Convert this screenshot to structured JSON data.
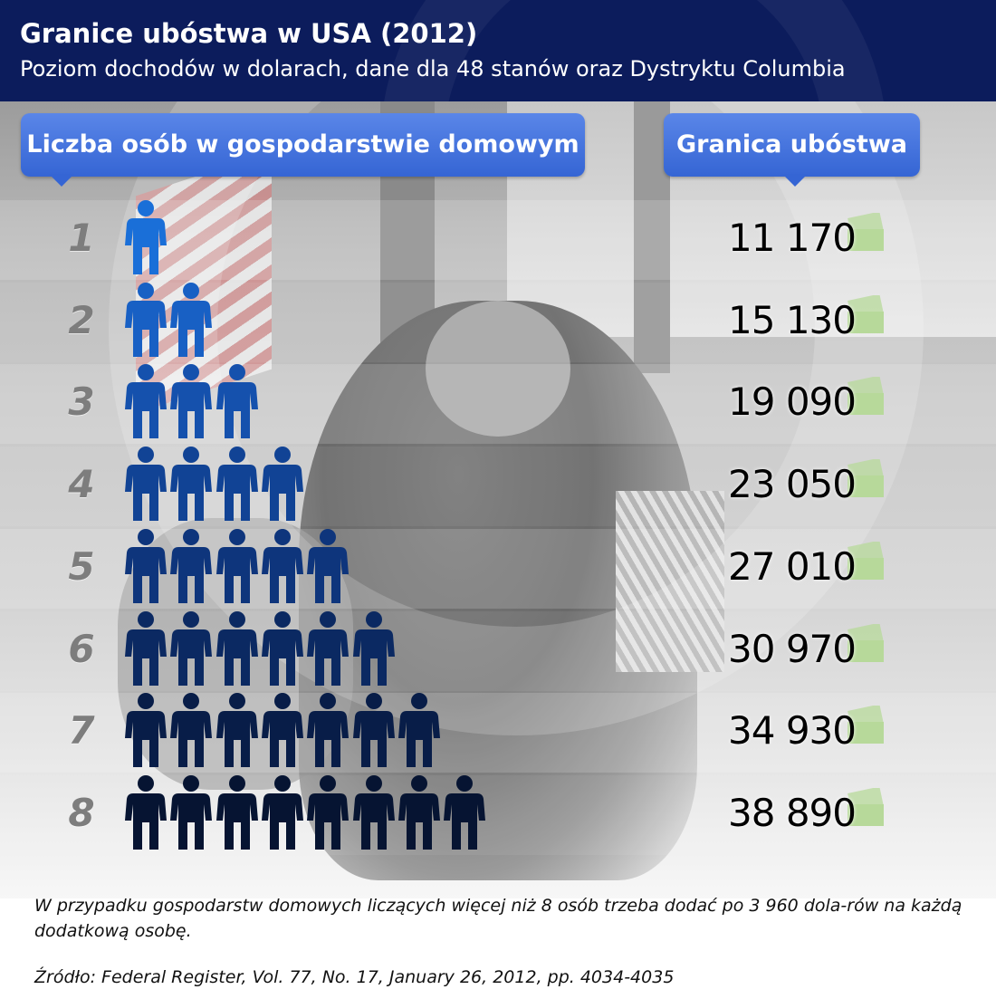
{
  "header": {
    "title": "Granice ubóstwa w USA (2012)",
    "subtitle": "Poziom dochodów w dolarach, dane dla 48 stanów oraz Dystryktu Columbia"
  },
  "columns": {
    "left_label": "Liczba osób w gospodarstwie domowym",
    "right_label": "Granica ubóstwa"
  },
  "colors": {
    "header_bg": "#0c1c5c",
    "pill": "#3565d4",
    "money": "#b7d99a",
    "person_ramp": [
      "#1a6fd8",
      "#1860c4",
      "#1551ad",
      "#114395",
      "#0e357c",
      "#0b2962",
      "#081d48",
      "#061432"
    ]
  },
  "icons": {
    "person": "person-icon",
    "money": "money-bill-icon",
    "pointer": "pointer-triangle"
  },
  "chart_data": {
    "type": "table",
    "title": "Granice ubóstwa w USA (2012)",
    "subtitle": "Poziom dochodów w dolarach, dane dla 48 stanów oraz Dystryktu Columbia",
    "columns": [
      "Liczba osób w gospodarstwie domowym",
      "Granica ubóstwa"
    ],
    "rows": [
      {
        "persons": 1,
        "label": "1",
        "value": 11170,
        "value_label": "11 170"
      },
      {
        "persons": 2,
        "label": "2",
        "value": 15130,
        "value_label": "15 130"
      },
      {
        "persons": 3,
        "label": "3",
        "value": 19090,
        "value_label": "19 090"
      },
      {
        "persons": 4,
        "label": "4",
        "value": 23050,
        "value_label": "23 050"
      },
      {
        "persons": 5,
        "label": "5",
        "value": 27010,
        "value_label": "27 010"
      },
      {
        "persons": 6,
        "label": "6",
        "value": 30970,
        "value_label": "30 970"
      },
      {
        "persons": 7,
        "label": "7",
        "value": 34930,
        "value_label": "34 930"
      },
      {
        "persons": 8,
        "label": "8",
        "value": 38890,
        "value_label": "38 890"
      }
    ]
  },
  "footnote": "W przypadku gospodarstw domowych liczących więcej niż 8 osób trzeba dodać po 3 960 dola-rów na każdą dodatkową osobę.",
  "source": "Źródło:  Federal Register, Vol. 77, No. 17, January 26, 2012, pp. 4034-4035"
}
